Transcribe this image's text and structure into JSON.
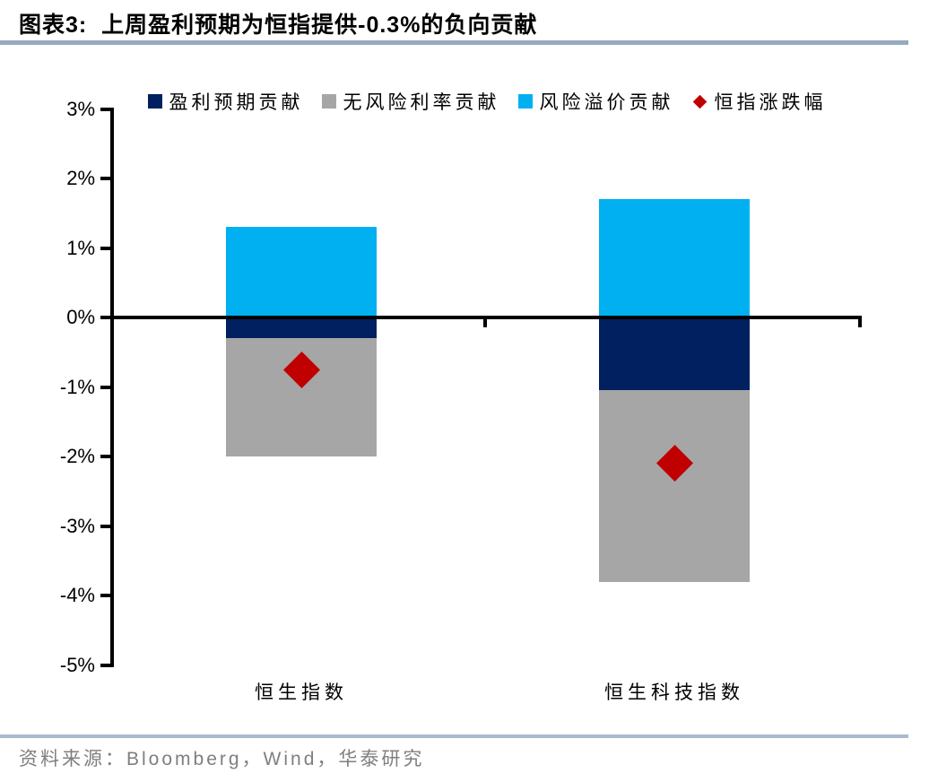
{
  "header": {
    "title": "图表3:  上周盈利预期为恒指提供-0.3%的负向贡献"
  },
  "chart_data": {
    "type": "bar",
    "stacked": true,
    "title": "上周盈利预期为恒指提供-0.3%的负向贡献",
    "categories": [
      "恒生指数",
      "恒生科技指数"
    ],
    "series": [
      {
        "name": "盈利预期贡献",
        "color": "#002060",
        "values": [
          -0.3,
          -1.05
        ]
      },
      {
        "name": "无风险利率贡献",
        "color": "#A6A6A6",
        "values": [
          -1.7,
          -2.75
        ]
      },
      {
        "name": "风险溢价贡献",
        "color": "#00B0F0",
        "values": [
          1.3,
          1.7
        ]
      }
    ],
    "markers": {
      "name": "恒指涨跌幅",
      "shape": "diamond",
      "color": "#C00000",
      "values": [
        -0.75,
        -2.1
      ]
    },
    "y_axis": {
      "min": -5,
      "max": 3,
      "step": 1,
      "tick_labels": [
        "3%",
        "2%",
        "1%",
        "0%",
        "-1%",
        "-2%",
        "-3%",
        "-4%",
        "-5%"
      ]
    },
    "xlabel": "",
    "ylabel": "",
    "legend_position": "top",
    "grid": false
  },
  "footer": {
    "source": "资料来源：Bloomberg，Wind，华泰研究"
  },
  "colors": {
    "title_rule": "#96A9C1",
    "source_rule": "#A9B9CE",
    "axis": "#000000",
    "background": "#FFFFFF"
  }
}
